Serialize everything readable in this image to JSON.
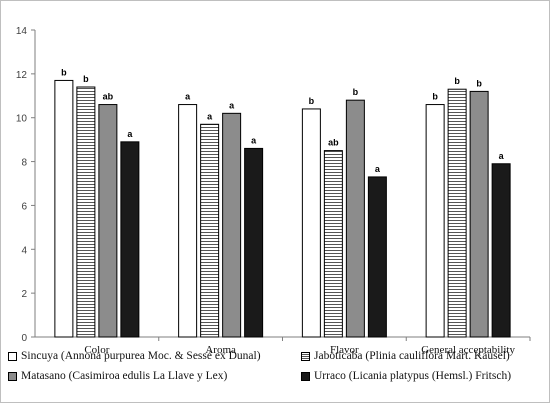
{
  "chart_data": {
    "type": "bar",
    "title": "",
    "xlabel": "",
    "ylabel": "",
    "ylim": [
      0,
      14
    ],
    "yticks": [
      0,
      2,
      4,
      6,
      8,
      10,
      12,
      14
    ],
    "grid": false,
    "legend_position": "bottom",
    "categories": [
      "Color",
      "Aroma",
      "Flavor",
      "General acceptability"
    ],
    "series": [
      {
        "name": "Sincuya (Annona purpurea Moc. & Sessé ex Dunal)",
        "fill": "#ffffff",
        "pattern": "solid",
        "values": [
          11.7,
          10.6,
          10.4,
          10.6
        ],
        "labels": [
          "b",
          "a",
          "b",
          "b"
        ]
      },
      {
        "name": "Jaboticaba (Plinia cauliflora Mart. Kausel)",
        "fill": "#ffffff",
        "pattern": "horizontal-lines",
        "values": [
          11.4,
          9.7,
          8.5,
          11.3
        ],
        "labels": [
          "b",
          "a",
          "ab",
          "b"
        ]
      },
      {
        "name": "Matasano (Casimiroa edulis La Llave y Lex)",
        "fill": "#8c8c8c",
        "pattern": "solid",
        "values": [
          10.6,
          10.2,
          10.8,
          11.2
        ],
        "labels": [
          "ab",
          "a",
          "b",
          "b"
        ]
      },
      {
        "name": "Urraco (Licania platypus (Hemsl.) Fritsch)",
        "fill": "#1a1a1a",
        "pattern": "solid",
        "values": [
          8.9,
          8.6,
          7.3,
          7.9
        ],
        "labels": [
          "a",
          "a",
          "a",
          "a"
        ]
      }
    ]
  }
}
